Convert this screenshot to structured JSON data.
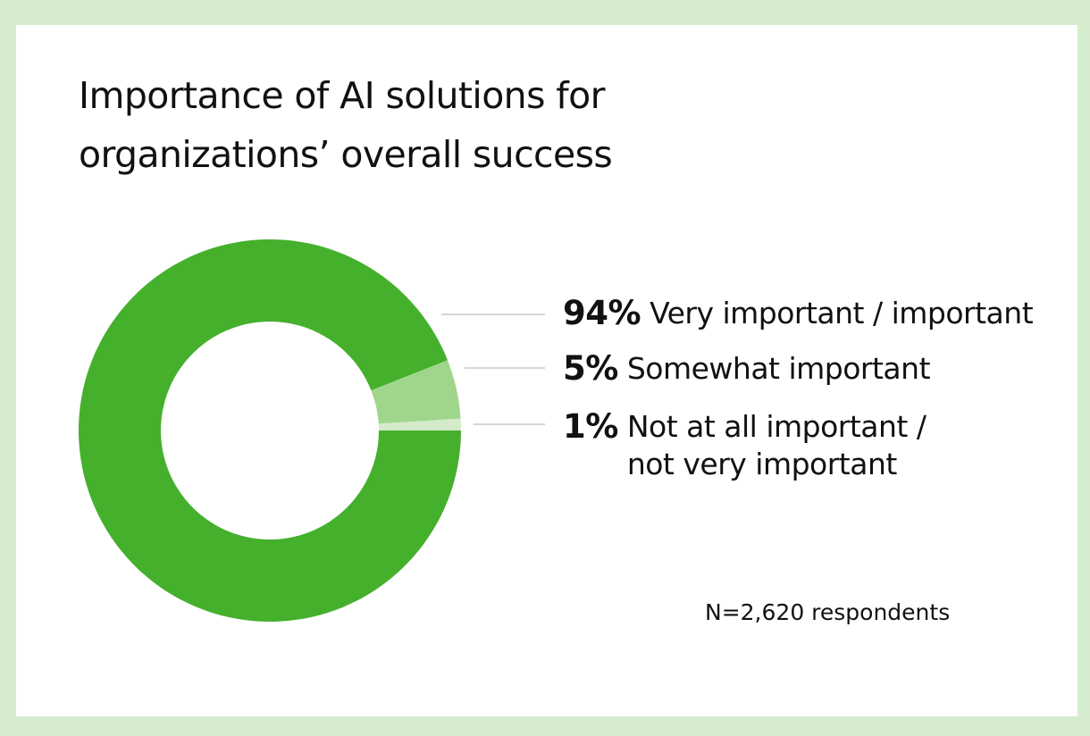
{
  "chart_data": {
    "type": "pie",
    "title": "Importance of AI solutions for\norganizations’ overall success",
    "slices": [
      {
        "pct_text": "94%",
        "label": "Very important / important",
        "value": 94,
        "color": "#45b02c"
      },
      {
        "pct_text": "5%",
        "label": "Somewhat important",
        "value": 5,
        "color": "#9fd68c"
      },
      {
        "pct_text": "1%",
        "label": "Not at all important /\nnot very important",
        "value": 1,
        "color": "#d3ebcb"
      }
    ],
    "note": "N=2,620 respondents"
  },
  "colors": {
    "frame": "#d5ecce",
    "card": "#ffffff",
    "leader": "#c8c8c8"
  }
}
